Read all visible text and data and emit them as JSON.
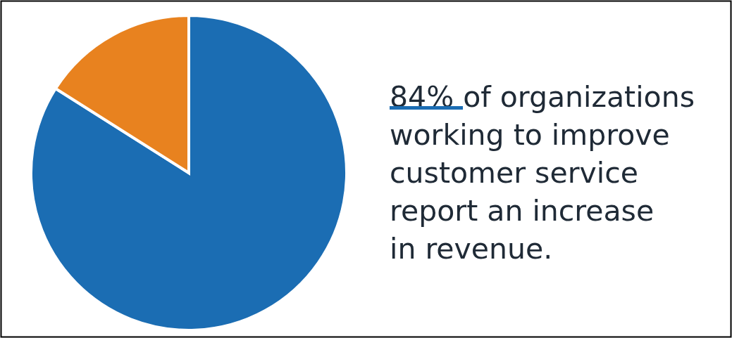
{
  "chart_data": {
    "type": "pie",
    "title": "84% of organizations working to improve customer service report an increase in revenue.",
    "categories": [
      null,
      null
    ],
    "values": [
      84,
      16
    ],
    "colors": [
      "#1b6db3",
      "#e8821f"
    ],
    "legend": false
  }
}
